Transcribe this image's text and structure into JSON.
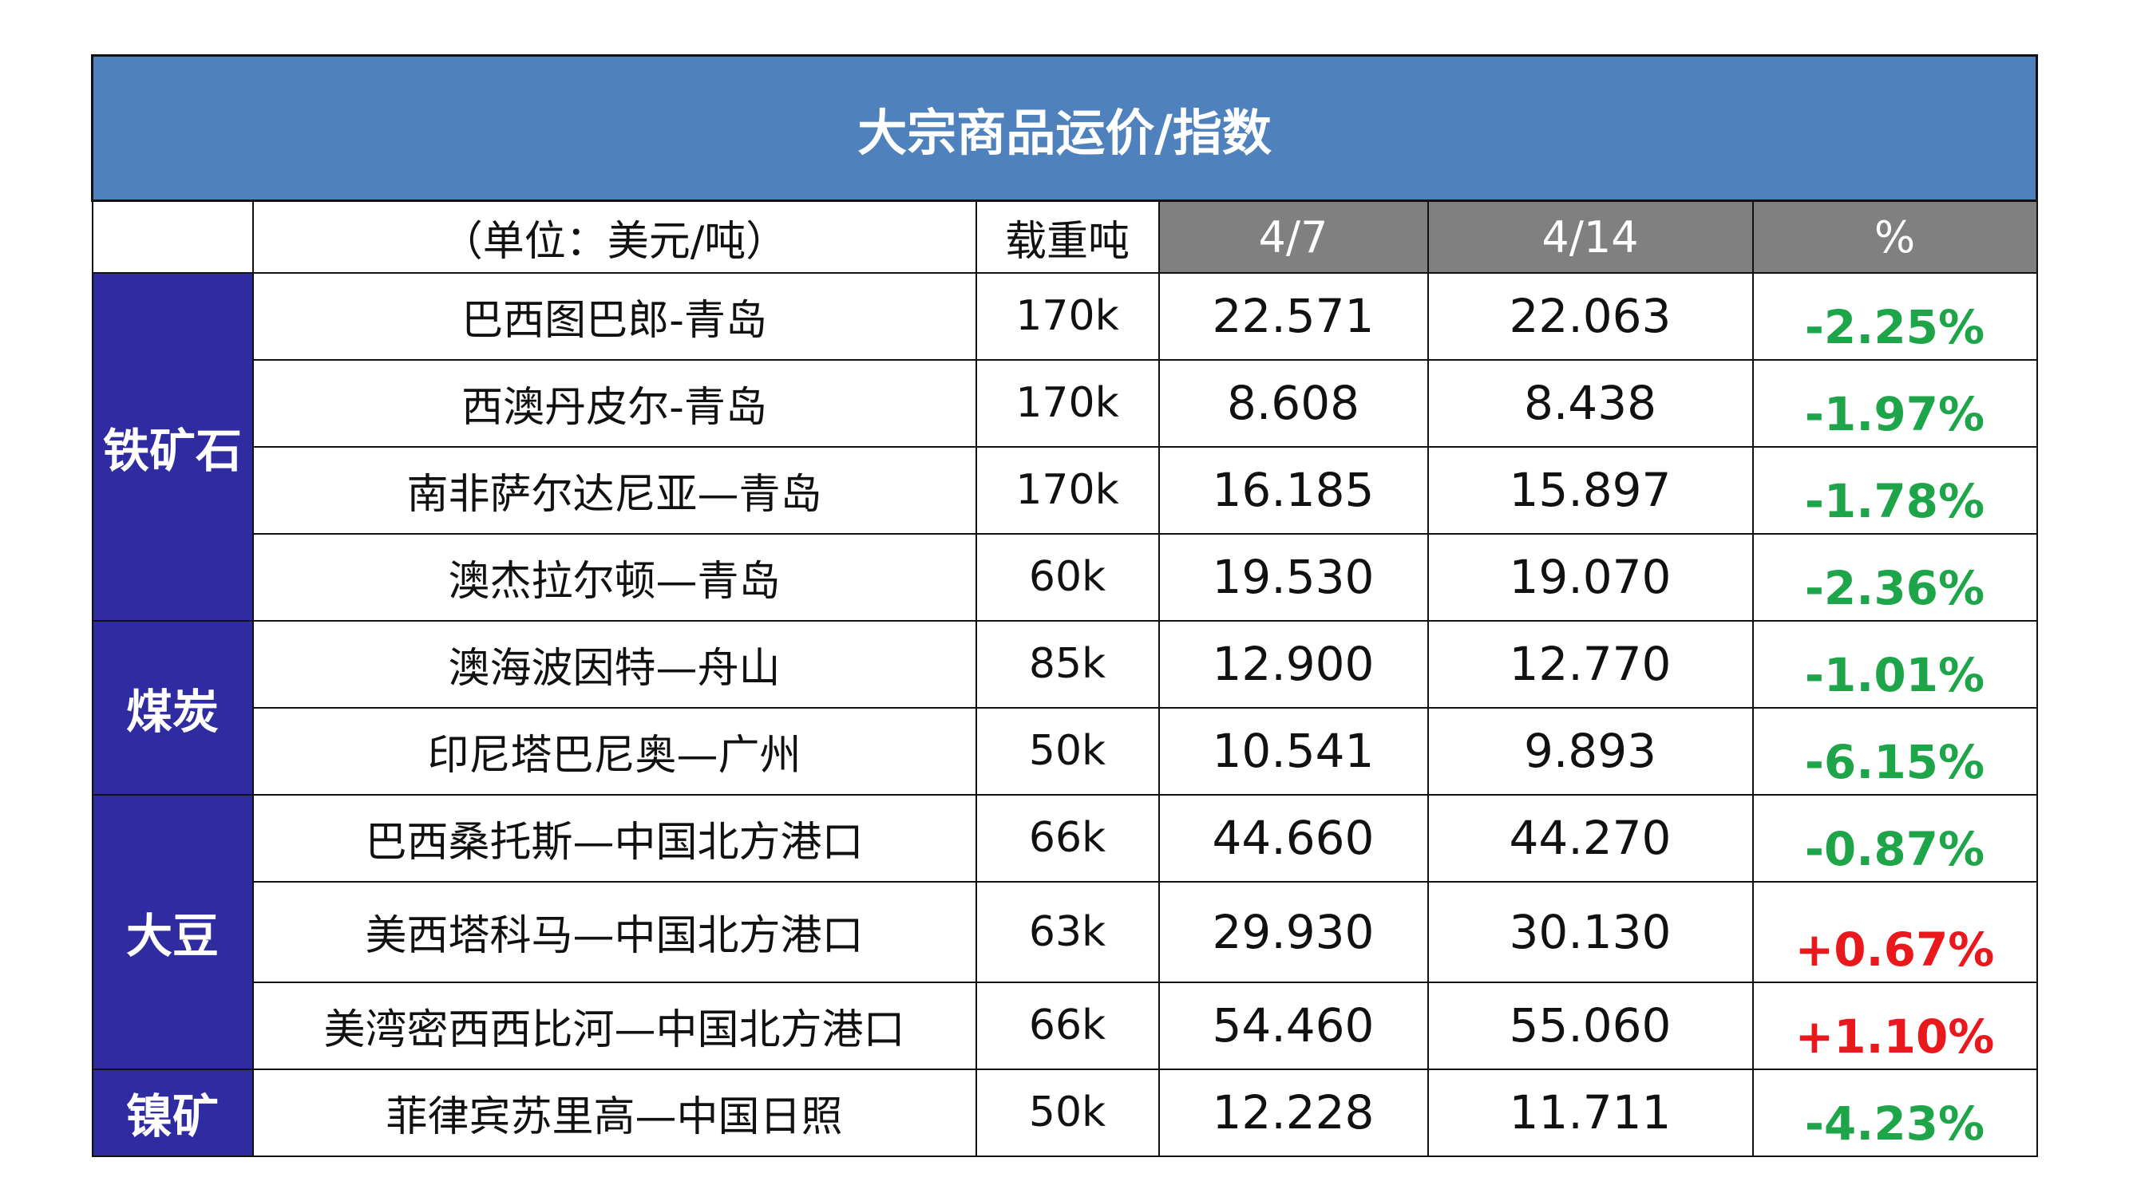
{
  "title": "大宗商品运价/指数",
  "header": {
    "unit": "（单位：美元/吨）",
    "load": "载重吨",
    "date1": "4/7",
    "date2": "4/14",
    "pct": "%"
  },
  "groups": [
    {
      "name": "铁矿石"
    },
    {
      "name": "煤炭"
    },
    {
      "name": "大豆"
    },
    {
      "name": "镍矿"
    }
  ],
  "rows": [
    {
      "route": "巴西图巴郎-青岛",
      "load": "170k",
      "v1": "22.571",
      "v2": "22.063",
      "pct": "-2.25%"
    },
    {
      "route": "西澳丹皮尔-青岛",
      "load": "170k",
      "v1": "8.608",
      "v2": "8.438",
      "pct": "-1.97%"
    },
    {
      "route": "南非萨尔达尼亚—青岛",
      "load": "170k",
      "v1": "16.185",
      "v2": "15.897",
      "pct": "-1.78%"
    },
    {
      "route": "澳杰拉尔顿—青岛",
      "load": "60k",
      "v1": "19.530",
      "v2": "19.070",
      "pct": "-2.36%"
    },
    {
      "route": "澳海波因特—舟山",
      "load": "85k",
      "v1": "12.900",
      "v2": "12.770",
      "pct": "-1.01%"
    },
    {
      "route": "印尼塔巴尼奥—广州",
      "load": "50k",
      "v1": "10.541",
      "v2": "9.893",
      "pct": "-6.15%"
    },
    {
      "route": "巴西桑托斯—中国北方港口",
      "load": "66k",
      "v1": "44.660",
      "v2": "44.270",
      "pct": "-0.87%"
    },
    {
      "route": "美西塔科马—中国北方港口",
      "load": "63k",
      "v1": "29.930",
      "v2": "30.130",
      "pct": "+0.67%"
    },
    {
      "route": "美湾密西西比河—中国北方港口",
      "load": "66k",
      "v1": "54.460",
      "v2": "55.060",
      "pct": "+1.10%"
    },
    {
      "route": "菲律宾苏里高—中国日照",
      "load": "50k",
      "v1": "12.228",
      "v2": "11.711",
      "pct": "-4.23%"
    }
  ],
  "colors": {
    "title_bg": "#4f81bd",
    "category_bg": "#2e2ca0",
    "date_header_bg": "#808080",
    "decrease": "#1ea54a",
    "increase": "#e8181d"
  }
}
